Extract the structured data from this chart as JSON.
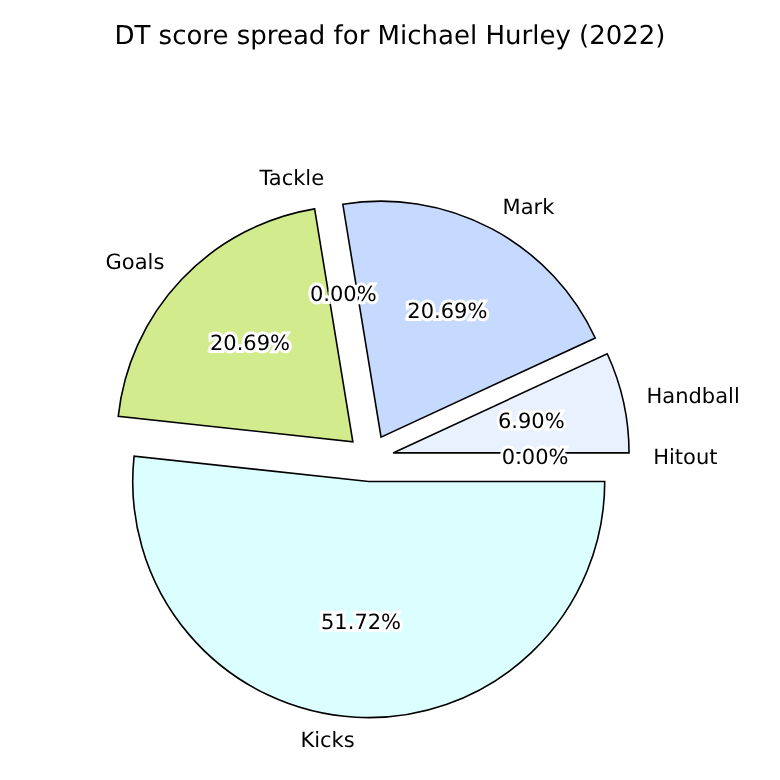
{
  "chart_data": {
    "type": "pie",
    "title": "DT score spread for Michael Hurley (2022)",
    "categories": [
      "Hitout",
      "Handball",
      "Mark",
      "Tackle",
      "Goals",
      "Kicks"
    ],
    "values": [
      0,
      6.9,
      20.69,
      0,
      20.69,
      51.72
    ],
    "value_labels": [
      "0.00%",
      "6.90%",
      "20.69%",
      "0.00%",
      "20.69%",
      "51.72%"
    ],
    "colors": [
      "#f5f5f5",
      "#eaf1fe",
      "#c6d9fe",
      "#e8e8e8",
      "#d2eb8c",
      "#dbfffe"
    ],
    "legend": false
  }
}
